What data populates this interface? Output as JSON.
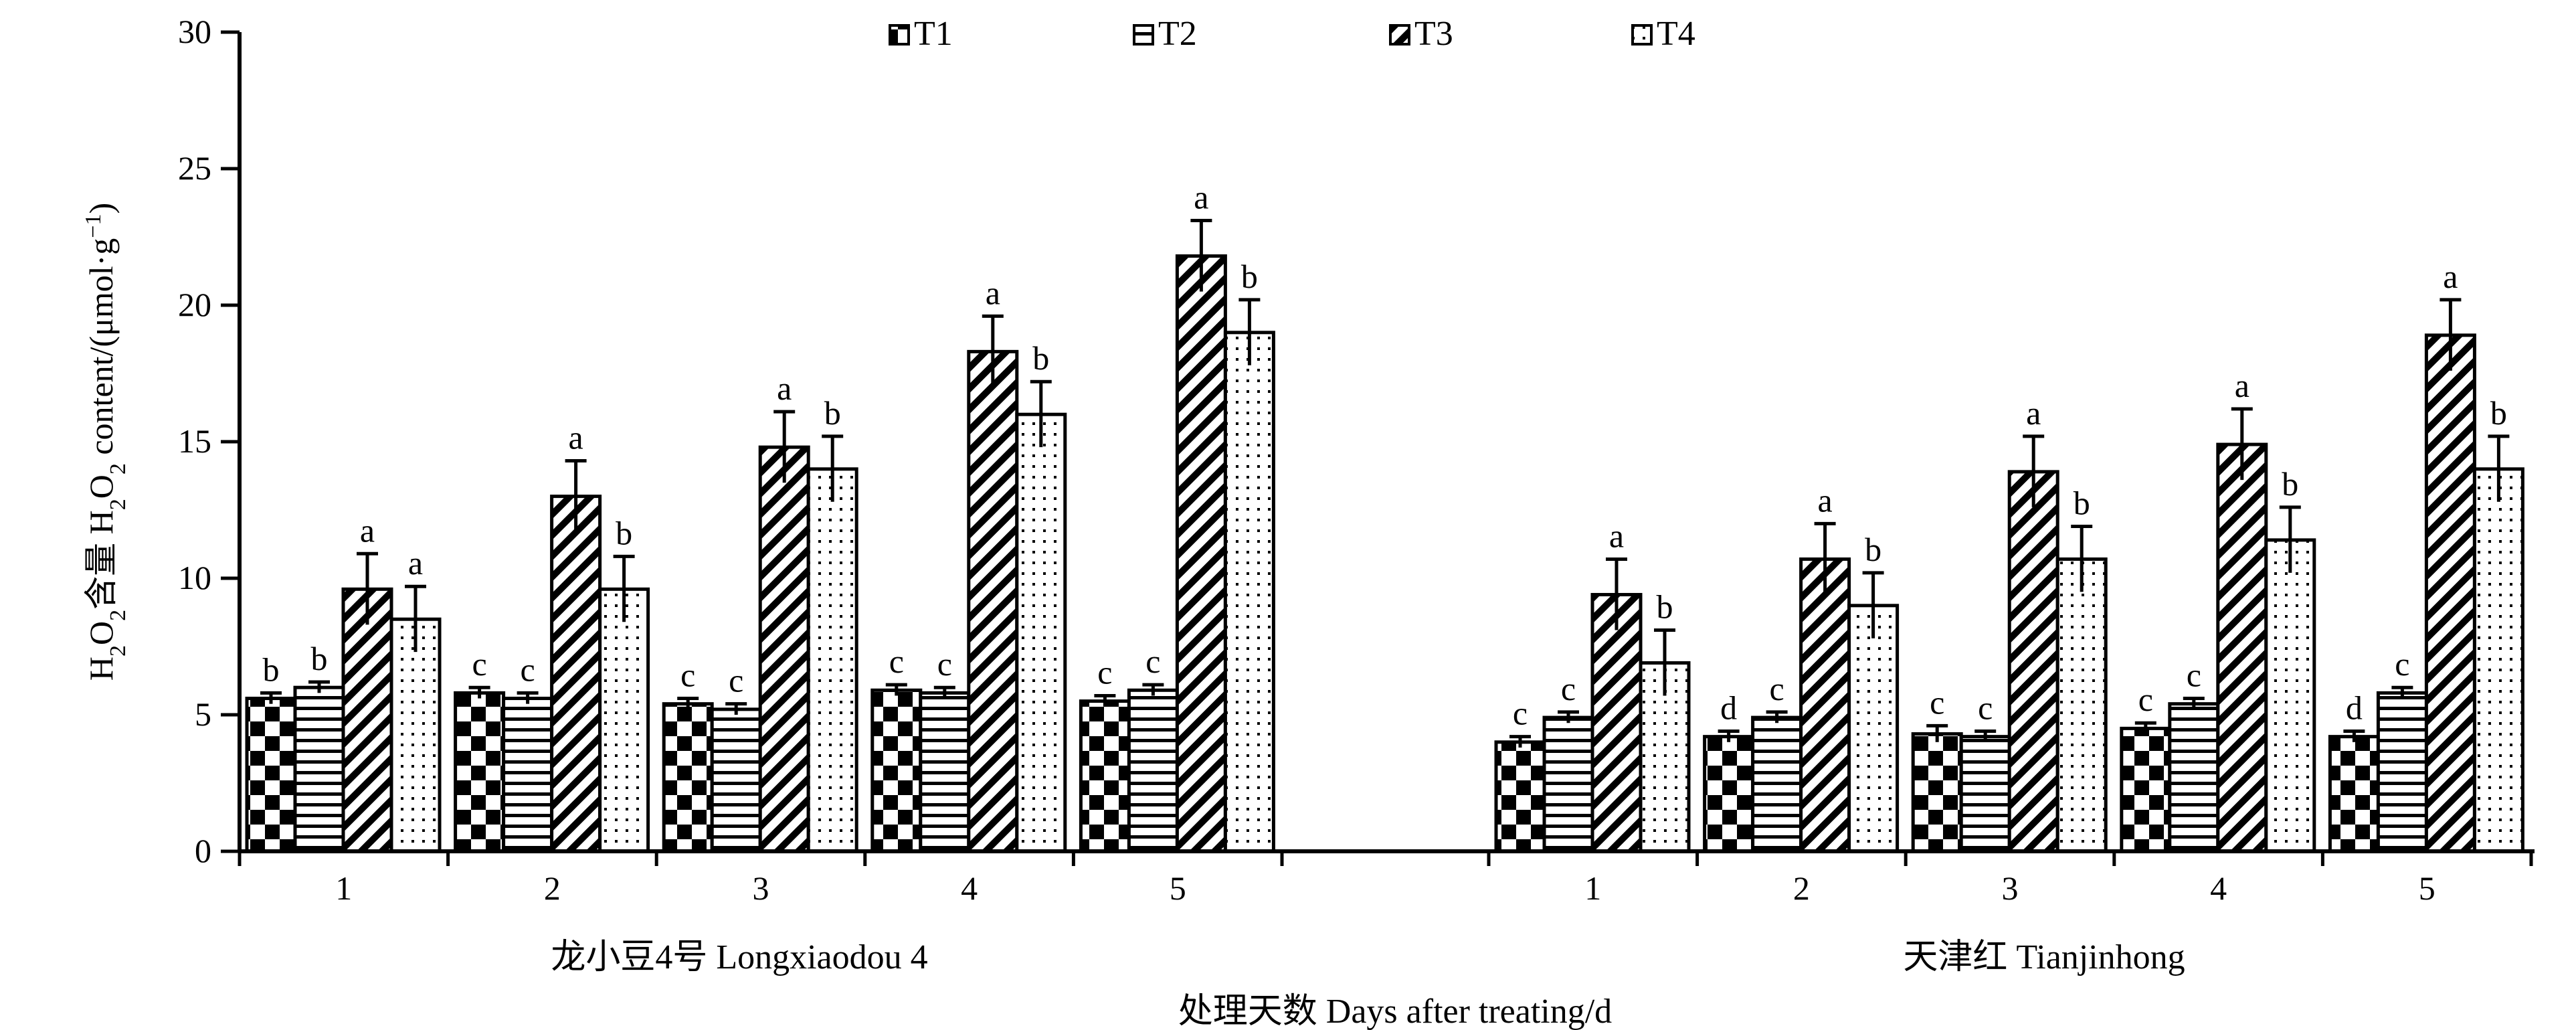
{
  "chart_data": {
    "type": "bar",
    "ylabel": "H2O2含量 H2O2 content/(μmol·g−1)",
    "ylabel_parts": {
      "h": "H",
      "two": "2",
      "o": "O",
      "hanzi": "含量",
      "content": " content/(μmol·g",
      "neg1": "−1",
      "close": ")"
    },
    "xlabel": "处理天数 Days after treating/d",
    "ylim": [
      0,
      30
    ],
    "yticks": [
      "0",
      "5",
      "10",
      "15",
      "20",
      "25",
      "30"
    ],
    "legend_position": "top",
    "colors": {
      "axis": "#000000",
      "bar_edge": "#000000",
      "bar_fill": "#ffffff"
    },
    "series": [
      {
        "name": "T1",
        "pattern": "checkerboard"
      },
      {
        "name": "T2",
        "pattern": "horizontal-lines"
      },
      {
        "name": "T3",
        "pattern": "diagonal-hatch"
      },
      {
        "name": "T4",
        "pattern": "dotted"
      }
    ],
    "groups": [
      {
        "label": "龙小豆4号 Longxiaodou 4",
        "categories": [
          "1",
          "2",
          "3",
          "4",
          "5"
        ],
        "values": {
          "T1": [
            5.6,
            5.8,
            5.4,
            5.9,
            5.5
          ],
          "T2": [
            6.0,
            5.6,
            5.2,
            5.8,
            5.9
          ],
          "T3": [
            9.6,
            13.0,
            14.8,
            18.3,
            21.8
          ],
          "T4": [
            8.5,
            9.6,
            14.0,
            16.0,
            19.0
          ]
        },
        "errors": {
          "T1": [
            0.2,
            0.2,
            0.2,
            0.2,
            0.2
          ],
          "T2": [
            0.2,
            0.2,
            0.2,
            0.2,
            0.2
          ],
          "T3": [
            1.3,
            1.3,
            1.3,
            1.3,
            1.3
          ],
          "T4": [
            1.2,
            1.2,
            1.2,
            1.2,
            1.2
          ]
        },
        "letters": {
          "T1": [
            "b",
            "c",
            "c",
            "c",
            "c"
          ],
          "T2": [
            "b",
            "c",
            "c",
            "c",
            "c"
          ],
          "T3": [
            "a",
            "a",
            "a",
            "a",
            "a"
          ],
          "T4": [
            "a",
            "b",
            "b",
            "b",
            "b"
          ]
        }
      },
      {
        "label": "天津红 Tianjinhong",
        "categories": [
          "1",
          "2",
          "3",
          "4",
          "5"
        ],
        "values": {
          "T1": [
            4.0,
            4.2,
            4.3,
            4.5,
            4.2
          ],
          "T2": [
            4.9,
            4.9,
            4.2,
            5.4,
            5.8
          ],
          "T3": [
            9.4,
            10.7,
            13.9,
            14.9,
            18.9
          ],
          "T4": [
            6.9,
            9.0,
            10.7,
            11.4,
            14.0
          ]
        },
        "errors": {
          "T1": [
            0.2,
            0.2,
            0.3,
            0.2,
            0.2
          ],
          "T2": [
            0.2,
            0.2,
            0.2,
            0.2,
            0.2
          ],
          "T3": [
            1.3,
            1.3,
            1.3,
            1.3,
            1.3
          ],
          "T4": [
            1.2,
            1.2,
            1.2,
            1.2,
            1.2
          ]
        },
        "letters": {
          "T1": [
            "c",
            "d",
            "c",
            "c",
            "d"
          ],
          "T2": [
            "c",
            "c",
            "c",
            "c",
            "c"
          ],
          "T3": [
            "a",
            "a",
            "a",
            "a",
            "a"
          ],
          "T4": [
            "b",
            "b",
            "b",
            "b",
            "b"
          ]
        }
      }
    ]
  }
}
